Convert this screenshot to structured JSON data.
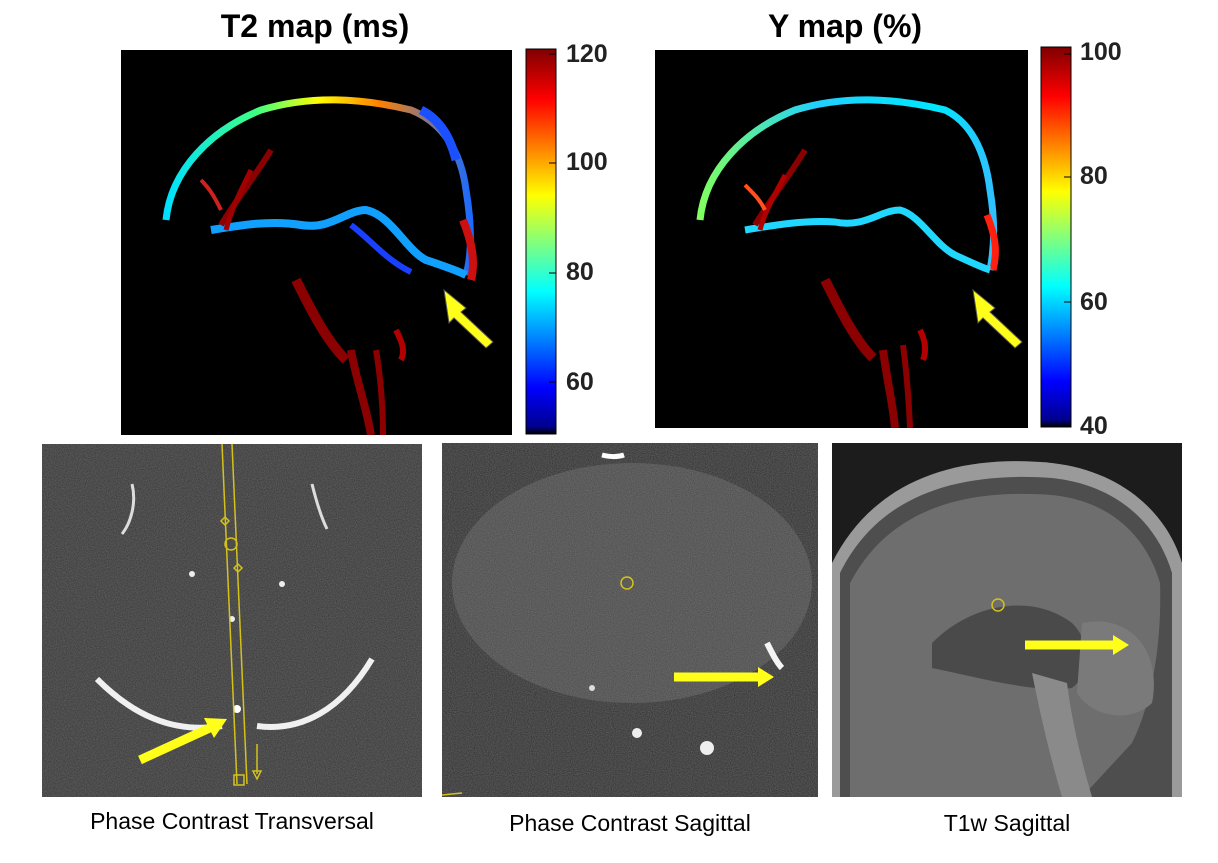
{
  "top_left": {
    "title": "T2 map (ms)",
    "colorbar_ticks": [
      "120",
      "100",
      "80",
      "60"
    ],
    "colorbar_range": [
      50,
      122
    ]
  },
  "top_right": {
    "title": "Y map (%)",
    "colorbar_ticks": [
      "100",
      "80",
      "60",
      "40"
    ],
    "colorbar_range": [
      40,
      100
    ]
  },
  "bottom": {
    "captions": [
      "Phase Contrast Transversal",
      "Phase Contrast Sagittal",
      "T1w Sagittal"
    ]
  },
  "colors": {
    "arrow": "#ffff1a",
    "map_background": "#000000",
    "overlay": "#d4c21a"
  }
}
